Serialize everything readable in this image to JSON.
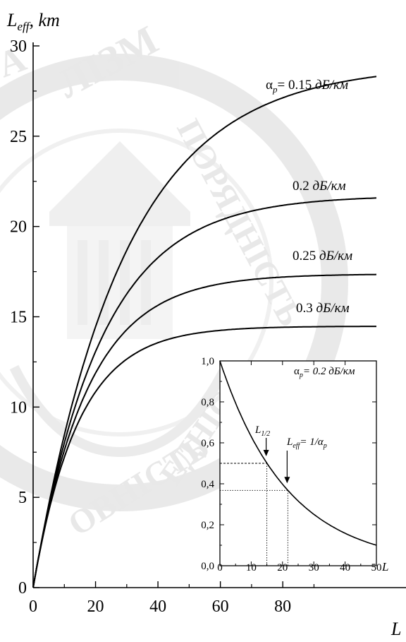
{
  "chart_data": [
    {
      "type": "line",
      "y_axis_title": "L",
      "y_axis_title_sub": "eff",
      "y_axis_title_unit": ", km",
      "x_axis_title": "L",
      "xlim": [
        0,
        120
      ],
      "ylim": [
        0,
        30
      ],
      "x_ticks": [
        0,
        20,
        40,
        60,
        80
      ],
      "x_tick_labels": [
        "0",
        "20",
        "40",
        "60",
        "80"
      ],
      "y_ticks": [
        0,
        5,
        10,
        15,
        20,
        25,
        30
      ],
      "y_tick_labels": [
        "0",
        "5",
        "10",
        "15",
        "20",
        "25",
        "30"
      ],
      "series": [
        {
          "name": "0.15 дБ/км",
          "prefix": "α",
          "prefix_sub": "p",
          "prefix_eq": "= ",
          "alpha": 0.15,
          "x": [
            0,
            5,
            10,
            20,
            30,
            40,
            50,
            60,
            70,
            80,
            90,
            100
          ],
          "y": [
            0,
            4.6,
            8.3,
            13.9,
            17.7,
            20.4,
            22.5,
            24.2,
            25.6,
            26.6,
            27.4,
            28.0
          ]
        },
        {
          "name": "0.2 дБ/км",
          "alpha": 0.2,
          "x": [
            0,
            5,
            10,
            20,
            30,
            40,
            50,
            60,
            70,
            80,
            90,
            100
          ],
          "y": [
            0,
            4.5,
            7.9,
            12.5,
            15.3,
            17.3,
            18.6,
            19.6,
            20.3,
            20.8,
            21.2,
            21.4
          ]
        },
        {
          "name": "0.25 дБ/км",
          "alpha": 0.25,
          "x": [
            0,
            5,
            10,
            20,
            30,
            40,
            50,
            60,
            70,
            80,
            90,
            100
          ],
          "y": [
            0,
            4.4,
            7.6,
            11.3,
            13.7,
            15.1,
            16.0,
            16.6,
            16.9,
            17.1,
            17.2,
            17.3
          ]
        },
        {
          "name": "0.3 дБ/км",
          "alpha": 0.3,
          "x": [
            0,
            5,
            10,
            20,
            30,
            40,
            50,
            60,
            70,
            80,
            90,
            100
          ],
          "y": [
            0,
            4.3,
            7.2,
            10.5,
            12.4,
            13.4,
            13.9,
            14.2,
            14.3,
            14.4,
            14.45,
            14.5
          ]
        }
      ]
    },
    {
      "type": "line",
      "xlim": [
        0,
        50
      ],
      "ylim": [
        0,
        1.0
      ],
      "x_ticks": [
        0,
        10,
        20,
        30,
        40,
        50
      ],
      "x_tick_labels": [
        "0",
        "10",
        "20",
        "30",
        "40",
        "50"
      ],
      "x_axis_title": "L",
      "y_ticks": [
        0,
        0.2,
        0.4,
        0.6,
        0.8,
        1.0
      ],
      "y_tick_labels": [
        "0,0",
        "0,2",
        "0,4",
        "0,6",
        "0,8",
        "1,0"
      ],
      "legend": {
        "prefix": "α",
        "prefix_sub": "p",
        "text": "= 0.2 дБ/км"
      },
      "series": [
        {
          "x": [
            0,
            5,
            10,
            15,
            20,
            25,
            30,
            35,
            40,
            45,
            50
          ],
          "y": [
            1.0,
            0.794,
            0.631,
            0.501,
            0.398,
            0.316,
            0.251,
            0.2,
            0.158,
            0.126,
            0.1
          ]
        }
      ],
      "annotations": [
        {
          "label": "L",
          "label_sub": "1/2",
          "x": 15,
          "y": 0.5
        },
        {
          "label": "L",
          "label_sub": "eff",
          "label_rest": "= 1/α",
          "label_rest_sub": "p",
          "x": 21.7,
          "y": 0.368
        }
      ]
    }
  ],
  "watermark": {
    "text": [
      "ЛІЗМ",
      "ПОРЯДНІСТЬ",
      "ОВНІСТЬ",
      "ЕДНІСТЬ",
      "А"
    ]
  }
}
